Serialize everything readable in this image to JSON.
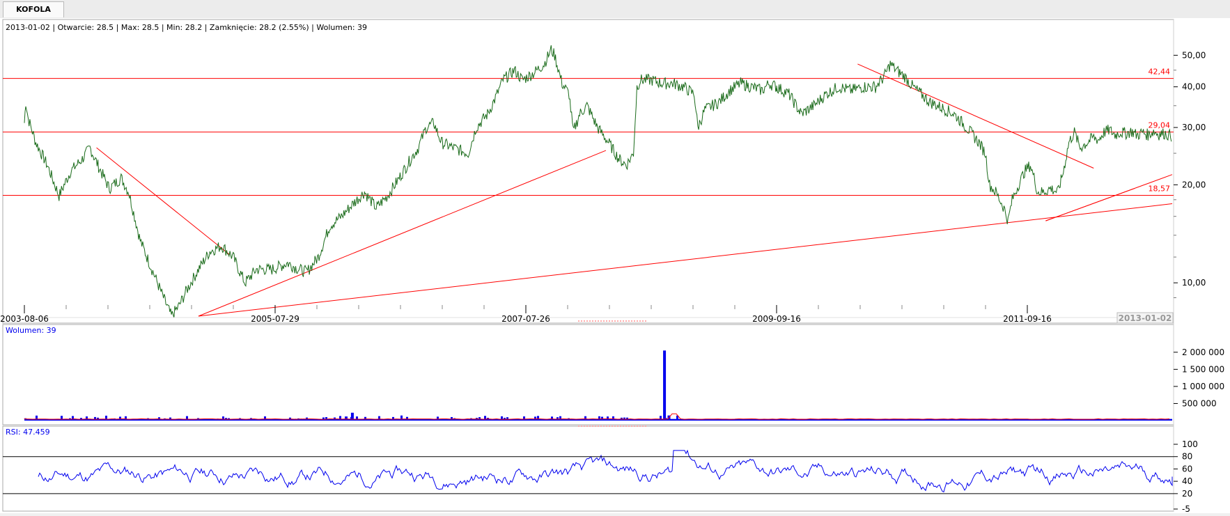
{
  "tab": {
    "label": "KOFOLA"
  },
  "info_line": "2013-01-02 | Otwarcie: 28.5 | Max: 28.5 | Min: 28.2 | Zamknięcie: 28.2 (2.55%)  | Wolumen: 39",
  "colors": {
    "price_line": "#1a6b1a",
    "support_line": "#ff0000",
    "volume_bar": "#0000ee",
    "rsi_line": "#0000ee",
    "text_blue": "#0000ee",
    "axis_text": "#000000"
  },
  "chart_data": [
    {
      "type": "line",
      "name": "price",
      "log_scale": true,
      "ylim": [
        7.9,
        55
      ],
      "y_ticks": [
        {
          "value": 50,
          "label": "50,00"
        },
        {
          "value": 40,
          "label": "40,00"
        },
        {
          "value": 30,
          "label": "30,00"
        },
        {
          "value": 20,
          "label": "20,00"
        },
        {
          "value": 10,
          "label": "10,00"
        }
      ],
      "x_ticks": [
        "2003-08-06",
        "2005-07-29",
        "2007-07-26",
        "2009-09-16",
        "2011-09-16"
      ],
      "x_current_label": "2013-01-02",
      "horizontal_levels": [
        {
          "value": 42.44,
          "label": "42,44"
        },
        {
          "value": 29.04,
          "label": "29,04"
        },
        {
          "value": 18.57,
          "label": "18,57"
        }
      ],
      "keypoints": [
        [
          0.0,
          31
        ],
        [
          0.002,
          36
        ],
        [
          0.005,
          32
        ],
        [
          0.015,
          27
        ],
        [
          0.03,
          23
        ],
        [
          0.045,
          18.5
        ],
        [
          0.06,
          22
        ],
        [
          0.075,
          24
        ],
        [
          0.085,
          26
        ],
        [
          0.095,
          23
        ],
        [
          0.11,
          19.5
        ],
        [
          0.125,
          21
        ],
        [
          0.135,
          19
        ],
        [
          0.15,
          13.5
        ],
        [
          0.165,
          11
        ],
        [
          0.18,
          9
        ],
        [
          0.19,
          7.9
        ],
        [
          0.2,
          8.5
        ],
        [
          0.21,
          9.5
        ],
        [
          0.225,
          11
        ],
        [
          0.24,
          12.5
        ],
        [
          0.255,
          13
        ],
        [
          0.27,
          12
        ],
        [
          0.285,
          10
        ],
        [
          0.3,
          11
        ],
        [
          0.32,
          11
        ],
        [
          0.34,
          11.5
        ],
        [
          0.355,
          11
        ],
        [
          0.365,
          10.8
        ],
        [
          0.38,
          12
        ],
        [
          0.395,
          15
        ],
        [
          0.41,
          16
        ],
        [
          0.425,
          17.5
        ],
        [
          0.44,
          19
        ],
        [
          0.455,
          17
        ],
        [
          0.47,
          18.5
        ],
        [
          0.485,
          21
        ],
        [
          0.5,
          24
        ],
        [
          0.51,
          26
        ],
        [
          0.52,
          30
        ],
        [
          0.53,
          31
        ],
        [
          0.54,
          27
        ],
        [
          0.555,
          26
        ],
        [
          0.575,
          25
        ],
        [
          0.585,
          30
        ],
        [
          0.6,
          33
        ],
        [
          0.61,
          37
        ],
        [
          0.62,
          42
        ],
        [
          0.635,
          45
        ],
        [
          0.645,
          42
        ],
        [
          0.66,
          44
        ],
        [
          0.675,
          47
        ],
        [
          0.685,
          52
        ],
        [
          0.69,
          50
        ],
        [
          0.7,
          41
        ],
        [
          0.71,
          38
        ],
        [
          0.716,
          29
        ],
        [
          0.725,
          33
        ],
        [
          0.735,
          35
        ],
        [
          0.75,
          30
        ],
        [
          0.765,
          27
        ],
        [
          0.78,
          24
        ],
        [
          0.79,
          23
        ],
        [
          0.8,
          25
        ],
        [
          0.805,
          40
        ],
        [
          0.81,
          42
        ],
        [
          0.825,
          42
        ],
        [
          0.84,
          41
        ],
        [
          0.855,
          41
        ],
        [
          0.87,
          40
        ],
        [
          0.885,
          38
        ],
        [
          0.89,
          30
        ],
        [
          0.9,
          34
        ],
        [
          0.92,
          36
        ],
        [
          0.935,
          39
        ],
        [
          0.95,
          41
        ],
        [
          0.965,
          40
        ],
        [
          0.98,
          39
        ],
        [
          0.99,
          41
        ],
        [
          1.0,
          40
        ]
      ],
      "keypoints_note_removed": true,
      "x_fraction_mode": "segments",
      "segments": [
        {
          "from": "2003-08-06",
          "to": "2009-09-16"
        },
        {
          "from": "2009-09-16",
          "to": "2013-01-02"
        }
      ],
      "keypoints2": [
        [
          0.0,
          40
        ],
        [
          0.03,
          38
        ],
        [
          0.06,
          33
        ],
        [
          0.09,
          35
        ],
        [
          0.12,
          38
        ],
        [
          0.15,
          40
        ],
        [
          0.18,
          39
        ],
        [
          0.21,
          40
        ],
        [
          0.24,
          40
        ],
        [
          0.26,
          43
        ],
        [
          0.275,
          47
        ],
        [
          0.29,
          45
        ],
        [
          0.31,
          43
        ],
        [
          0.33,
          40
        ],
        [
          0.35,
          38
        ],
        [
          0.37,
          36
        ],
        [
          0.39,
          35
        ],
        [
          0.41,
          34
        ],
        [
          0.43,
          33
        ],
        [
          0.45,
          31
        ],
        [
          0.47,
          29
        ],
        [
          0.49,
          27
        ],
        [
          0.505,
          25
        ],
        [
          0.515,
          20
        ],
        [
          0.53,
          19
        ],
        [
          0.55,
          17
        ],
        [
          0.56,
          15.5
        ],
        [
          0.57,
          18
        ],
        [
          0.585,
          20
        ],
        [
          0.6,
          22
        ],
        [
          0.615,
          23
        ],
        [
          0.625,
          21
        ],
        [
          0.635,
          19
        ],
        [
          0.65,
          19
        ],
        [
          0.67,
          19.5
        ],
        [
          0.69,
          19
        ],
        [
          0.705,
          22
        ],
        [
          0.72,
          27
        ],
        [
          0.735,
          29
        ],
        [
          0.75,
          26
        ],
        [
          0.77,
          27
        ],
        [
          0.785,
          28
        ],
        [
          0.8,
          27.5
        ],
        [
          0.815,
          29
        ],
        [
          0.83,
          29.5
        ],
        [
          0.845,
          28.5
        ],
        [
          0.86,
          29
        ],
        [
          0.875,
          28.8
        ],
        [
          0.89,
          29.2
        ],
        [
          0.905,
          28.4
        ],
        [
          0.92,
          29
        ],
        [
          0.935,
          28.5
        ],
        [
          0.95,
          29.2
        ],
        [
          0.965,
          28.6
        ],
        [
          0.98,
          28.8
        ],
        [
          1.0,
          28.2
        ]
      ]
    },
    {
      "type": "bar",
      "name": "volume",
      "label": "Wolumen: 39",
      "ylim": [
        0,
        2200000
      ],
      "y_ticks": [
        {
          "value": 2000000,
          "label": "2 000 000"
        },
        {
          "value": 1500000,
          "label": "1 500 000"
        },
        {
          "value": 1000000,
          "label": "1 000 000"
        },
        {
          "value": 500000,
          "label": "500 000"
        }
      ],
      "spikes": [
        {
          "x": "2008-10-01",
          "value": 2050000
        },
        {
          "x": "2008-10-15",
          "value": 150000
        },
        {
          "x": "2006-03-10",
          "value": 230000
        },
        {
          "x": "2006-02-20",
          "value": 120000
        }
      ],
      "baseline_value": 30000
    },
    {
      "type": "line",
      "name": "rsi",
      "label": "RSI: 47.459",
      "ylim": [
        -5,
        100
      ],
      "y_ticks": [
        {
          "value": 100,
          "label": "100"
        },
        {
          "value": 80,
          "label": "80"
        },
        {
          "value": 60,
          "label": "60"
        },
        {
          "value": 40,
          "label": "40"
        },
        {
          "value": 20,
          "label": "20"
        },
        {
          "value": -5,
          "label": "-5"
        }
      ],
      "levels": [
        80,
        20
      ],
      "current": 47.459
    }
  ]
}
